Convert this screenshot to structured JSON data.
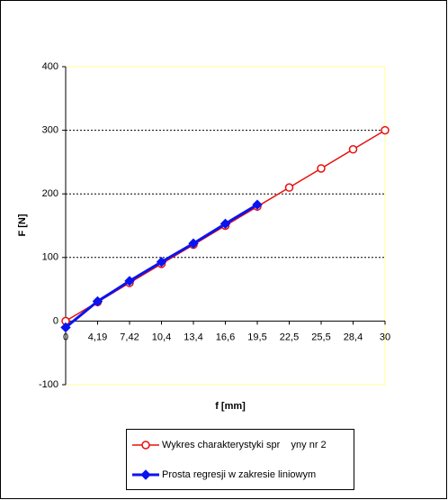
{
  "chart_data": {
    "type": "line",
    "categories": [
      "0",
      "4,19",
      "7,42",
      "10,4",
      "13,4",
      "16,6",
      "19,5",
      "22,5",
      "25,5",
      "28,4",
      "30"
    ],
    "series": [
      {
        "name": "Wykres charakterystyki spr    yny nr 2",
        "color": "#e8100c",
        "marker": "circle",
        "values": [
          0,
          30,
          60,
          90,
          120,
          150,
          180,
          210,
          240,
          270,
          300
        ]
      },
      {
        "name": "Prosta regresji w zakresie liniowym",
        "color": "#0a14f0",
        "marker": "diamond",
        "values": [
          -10,
          31,
          63,
          93,
          122,
          153,
          183,
          null,
          null,
          null,
          null
        ]
      }
    ],
    "xlabel": "f [mm]",
    "ylabel": "F [N]",
    "ylim": [
      -100,
      400
    ],
    "yticks": [
      -100,
      0,
      100,
      200,
      300,
      400
    ],
    "grid": true,
    "legend": "bottom"
  }
}
